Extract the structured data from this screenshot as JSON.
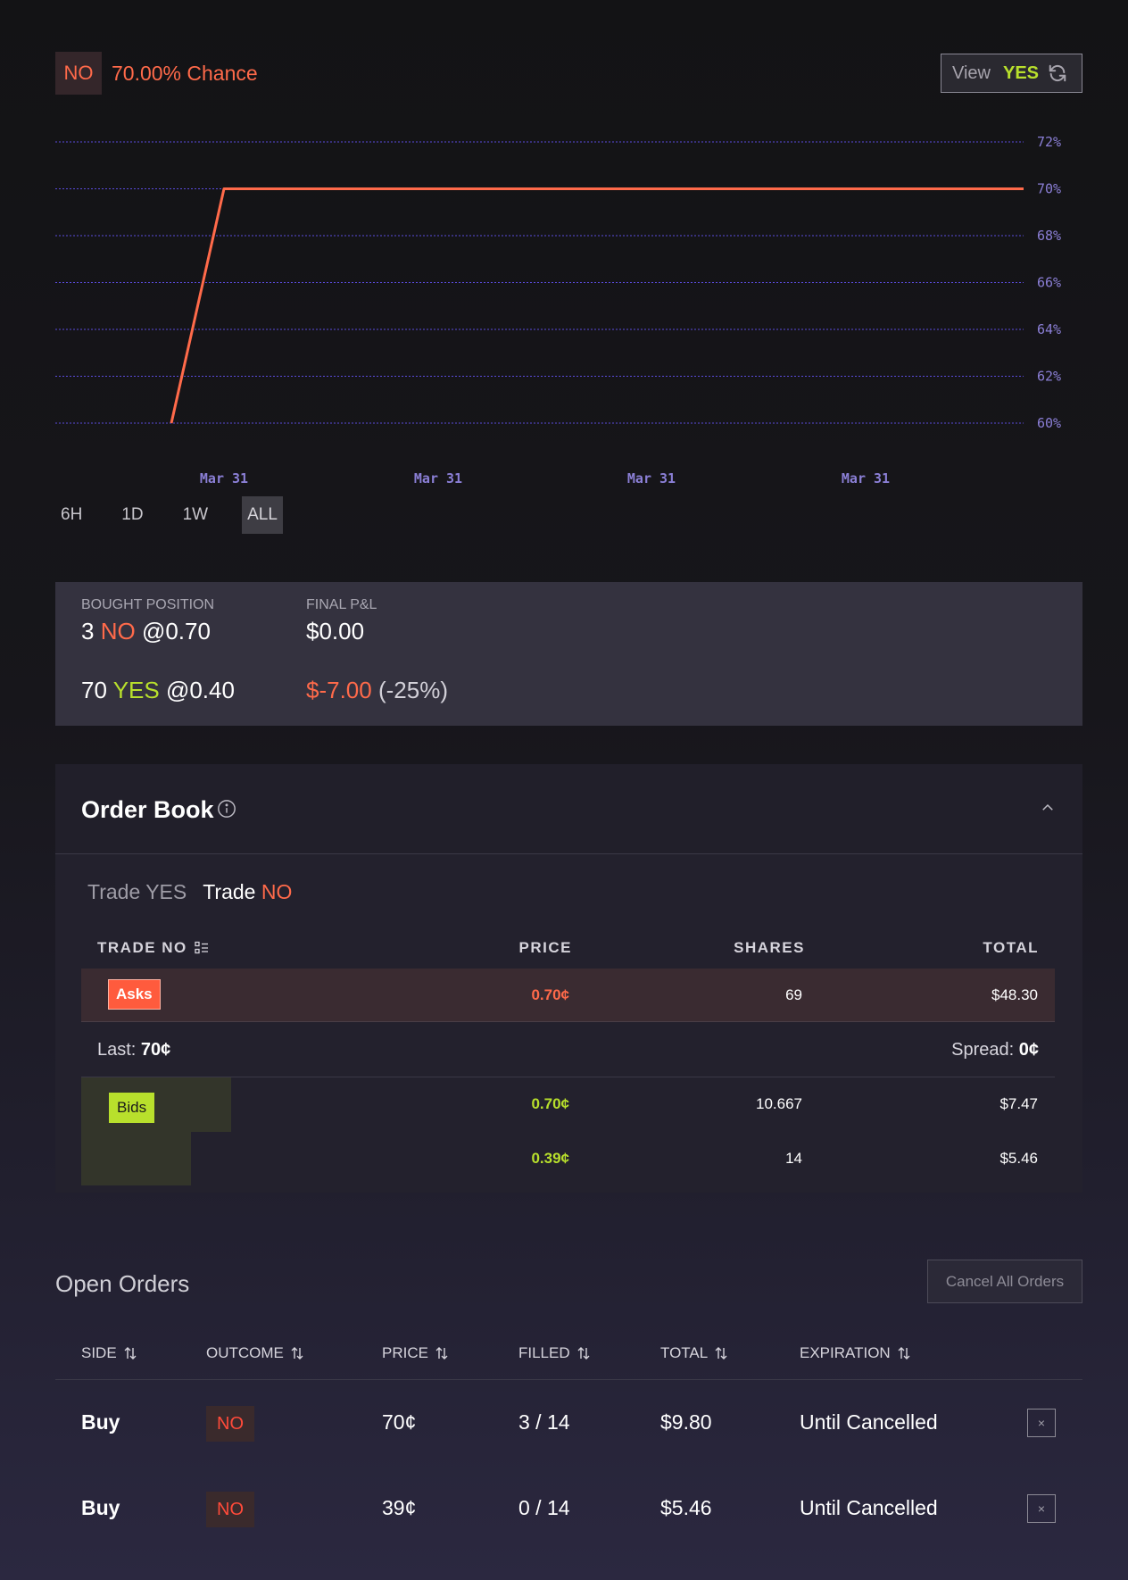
{
  "header": {
    "outcome_badge": "NO",
    "chance_text": "70.00% Chance",
    "view_label": "View",
    "view_value": "YES"
  },
  "chart_data": {
    "type": "line",
    "series": [
      {
        "values": [
          60,
          70,
          70
        ],
        "color": "#ff6a4a"
      }
    ],
    "x_labels": [
      "Mar 31",
      "Mar 31",
      "Mar 31",
      "Mar 31"
    ],
    "y_ticks": [
      "72%",
      "70%",
      "68%",
      "66%",
      "64%",
      "62%",
      "60%"
    ],
    "ylim": [
      60,
      72
    ],
    "grid": true
  },
  "range_buttons": [
    "6H",
    "1D",
    "1W",
    "ALL"
  ],
  "active_range": "ALL",
  "position": {
    "bought_label": "BOUGHT POSITION",
    "pnl_label": "FINAL P&L",
    "row1": {
      "qty": "3",
      "side": "NO",
      "price": "@0.70",
      "pnl": "$0.00"
    },
    "row2": {
      "qty": "70",
      "side": "YES",
      "price": "@0.40",
      "pnl": "$-7.00",
      "pct": "(-25%)"
    }
  },
  "order_book": {
    "title": "Order Book",
    "tabs": {
      "yes_label": "Trade YES",
      "no_prefix": "Trade",
      "no_side": "NO"
    },
    "columns": [
      "TRADE NO",
      "PRICE",
      "SHARES",
      "TOTAL"
    ],
    "asks_label": "Asks",
    "asks": [
      {
        "price": "0.70¢",
        "shares": "69",
        "total": "$48.30"
      }
    ],
    "last_label": "Last:",
    "last_value": "70¢",
    "spread_label": "Spread:",
    "spread_value": "0¢",
    "bids_label": "Bids",
    "bids": [
      {
        "price": "0.70¢",
        "shares": "10.667",
        "total": "$7.47"
      },
      {
        "price": "0.39¢",
        "shares": "14",
        "total": "$5.46"
      }
    ]
  },
  "open_orders": {
    "title": "Open Orders",
    "cancel_all_label": "Cancel All Orders",
    "columns": [
      "SIDE",
      "OUTCOME",
      "PRICE",
      "FILLED",
      "TOTAL",
      "EXPIRATION"
    ],
    "rows": [
      {
        "side": "Buy",
        "outcome": "NO",
        "price": "70¢",
        "filled": "3 / 14",
        "total": "$9.80",
        "expiration": "Until Cancelled"
      },
      {
        "side": "Buy",
        "outcome": "NO",
        "price": "39¢",
        "filled": "0 / 14",
        "total": "$5.46",
        "expiration": "Until Cancelled"
      }
    ],
    "close_glyph": "×"
  }
}
